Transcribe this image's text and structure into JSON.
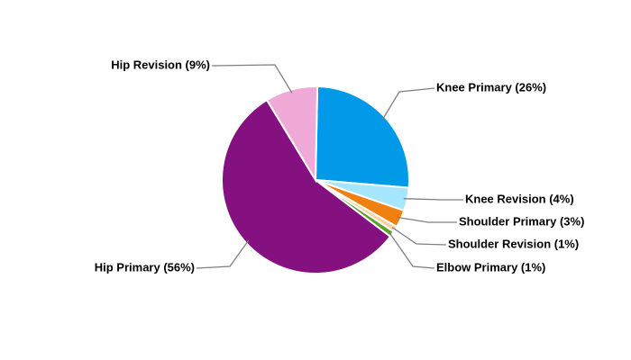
{
  "chart_data": {
    "type": "pie",
    "values": [
      26,
      4,
      3,
      1,
      1,
      56,
      9
    ],
    "value_labels": [
      "Knee Primary (26%)",
      "Knee Revision (4%)",
      "Shoulder Primary (3%)",
      "Shoulder Revision (1%)",
      "Elbow Primary (1%)",
      "Hip Primary (56%)",
      "Hip Revision (9%)"
    ],
    "colors": [
      "#009ae8",
      "#a6e6ff",
      "#f08010",
      "#ffcfa0",
      "#5aa02c",
      "#851080",
      "#f0aad8"
    ]
  }
}
